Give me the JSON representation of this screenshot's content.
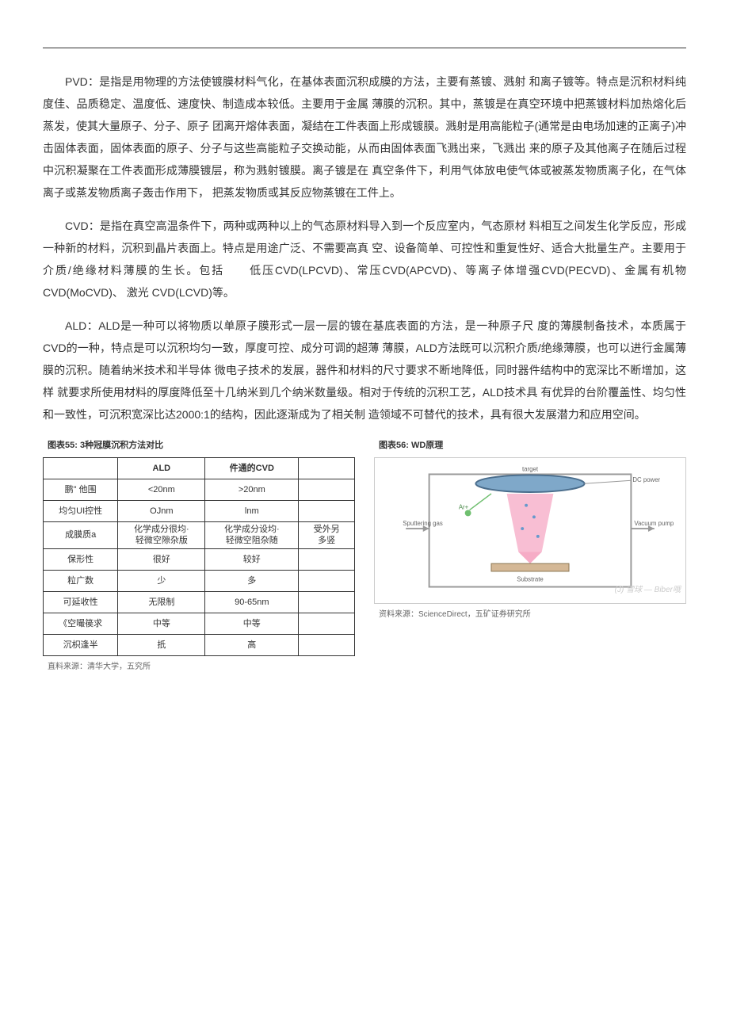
{
  "paragraphs": {
    "pvd": "PVD：是指是用物理的方法使镀膜材料气化，在基体表面沉积成膜的方法，主要有蒸镀、溅射 和离子镀等。特点是沉积材料纯度佳、品质稳定、温度低、速度快、制造成本较低。主要用于金属 薄膜的沉积。其中，蒸镀是在真空环境中把蒸镀材料加热熔化后蒸发，使其大量原子、分子、原子 团离开熔体表面，凝结在工件表面上形成镀膜。溅射是用高能粒子(通常是由电场加速的正离子)冲 击固体表面，固体表面的原子、分子与这些高能粒子交换动能，从而由固体表面飞溅出来，飞溅出 来的原子及其他离子在随后过程中沉积凝聚在工件表面形成薄膜镀层，称为溅射镀膜。离子镀是在 真空条件下，利用气体放电使气体或被蒸发物质离子化，在气体离子或蒸发物质离子轰击作用下， 把蒸发物质或其反应物蒸镀在工件上。",
    "cvd": "CVD：是指在真空高温条件下，两种或两种以上的气态原材料导入到一个反应室内，气态原材 料相互之间发生化学反应，形成一种新的材料，沉积到晶片表面上。特点是用途广泛、不需要高真 空、设备简单、可控性和重复性好、适合大批量生产。主要用于介质/绝缘材料薄膜的生长。包括　　低压CVD(LPCVD)、常压CVD(APCVD)、等离子体增强CVD(PECVD)、金属有机物CVD(MoCVD)、 激光 CVD(LCVD)等。",
    "ald": "ALD：ALD是一种可以将物质以单原子膜形式一层一层的镀在基底表面的方法，是一种原子尺 度的薄膜制备技术，本质属于CVD的一种，特点是可以沉积均匀一致，厚度可控、成分可调的超薄 薄膜，ALD方法既可以沉积介质/绝缘薄膜，也可以进行金属薄膜的沉积。随着纳米技术和半导体 微电子技术的发展，器件和材料的尺寸要求不断地降低，同时器件结构中的宽深比不断增加，这样 就要求所使用材料的厚度降低至十几纳米到几个纳米数量级。相对于传统的沉积工艺，ALD技术具 有优异的台阶覆盖性、均匀性和一致性，可沉积宽深比达2000:1的结构，因此逐渐成为了相关制 造领域不可替代的技术，具有很大发展潜力和应用空间。"
  },
  "figure55": {
    "title": "图表55: 3种冠膜沉积方法对比",
    "source": "直料来源：清华大学，五究所",
    "columns": [
      "",
      "ALD",
      "件通的CVD",
      ""
    ],
    "rows": [
      [
        "鹏\" 他围",
        "<20nm",
        ">20nm",
        ""
      ],
      [
        "均匀UI控性",
        "OJnm",
        "lnm",
        ""
      ],
      [
        "成膜质a",
        "化学成分很均·\n轻微空隙杂版",
        "化学成分设均·\n轻微空阻杂随",
        "受外另\n多竖"
      ],
      [
        "保形性",
        "很好",
        "较好",
        ""
      ],
      [
        "粒广数",
        "少",
        "多",
        ""
      ],
      [
        "可延收性",
        "无限制",
        "90-65nm",
        ""
      ],
      [
        "《空嘬篌求",
        "中等",
        "中等",
        ""
      ],
      [
        "沉枳逢半",
        "扺",
        "高",
        ""
      ]
    ]
  },
  "figure56": {
    "title": "图表56: WD原理",
    "source": "资料来源：ScienceDirect，五矿证券研究所",
    "labels": {
      "top": "target",
      "sputter_gas": "Sputtering gas",
      "vacuum": "Vacuum pump",
      "substrate": "Substrate",
      "dc": "DC power"
    },
    "colors": {
      "target_fill": "#7fa8c9",
      "target_stroke": "#4a6d8c",
      "plasma": "#f5a3c0",
      "substrate": "#d4b896",
      "frame": "#999999",
      "ion": "#6fbf6f",
      "atom": "#6699cc"
    },
    "watermark": "(J) 雪球 — Biber哦"
  }
}
